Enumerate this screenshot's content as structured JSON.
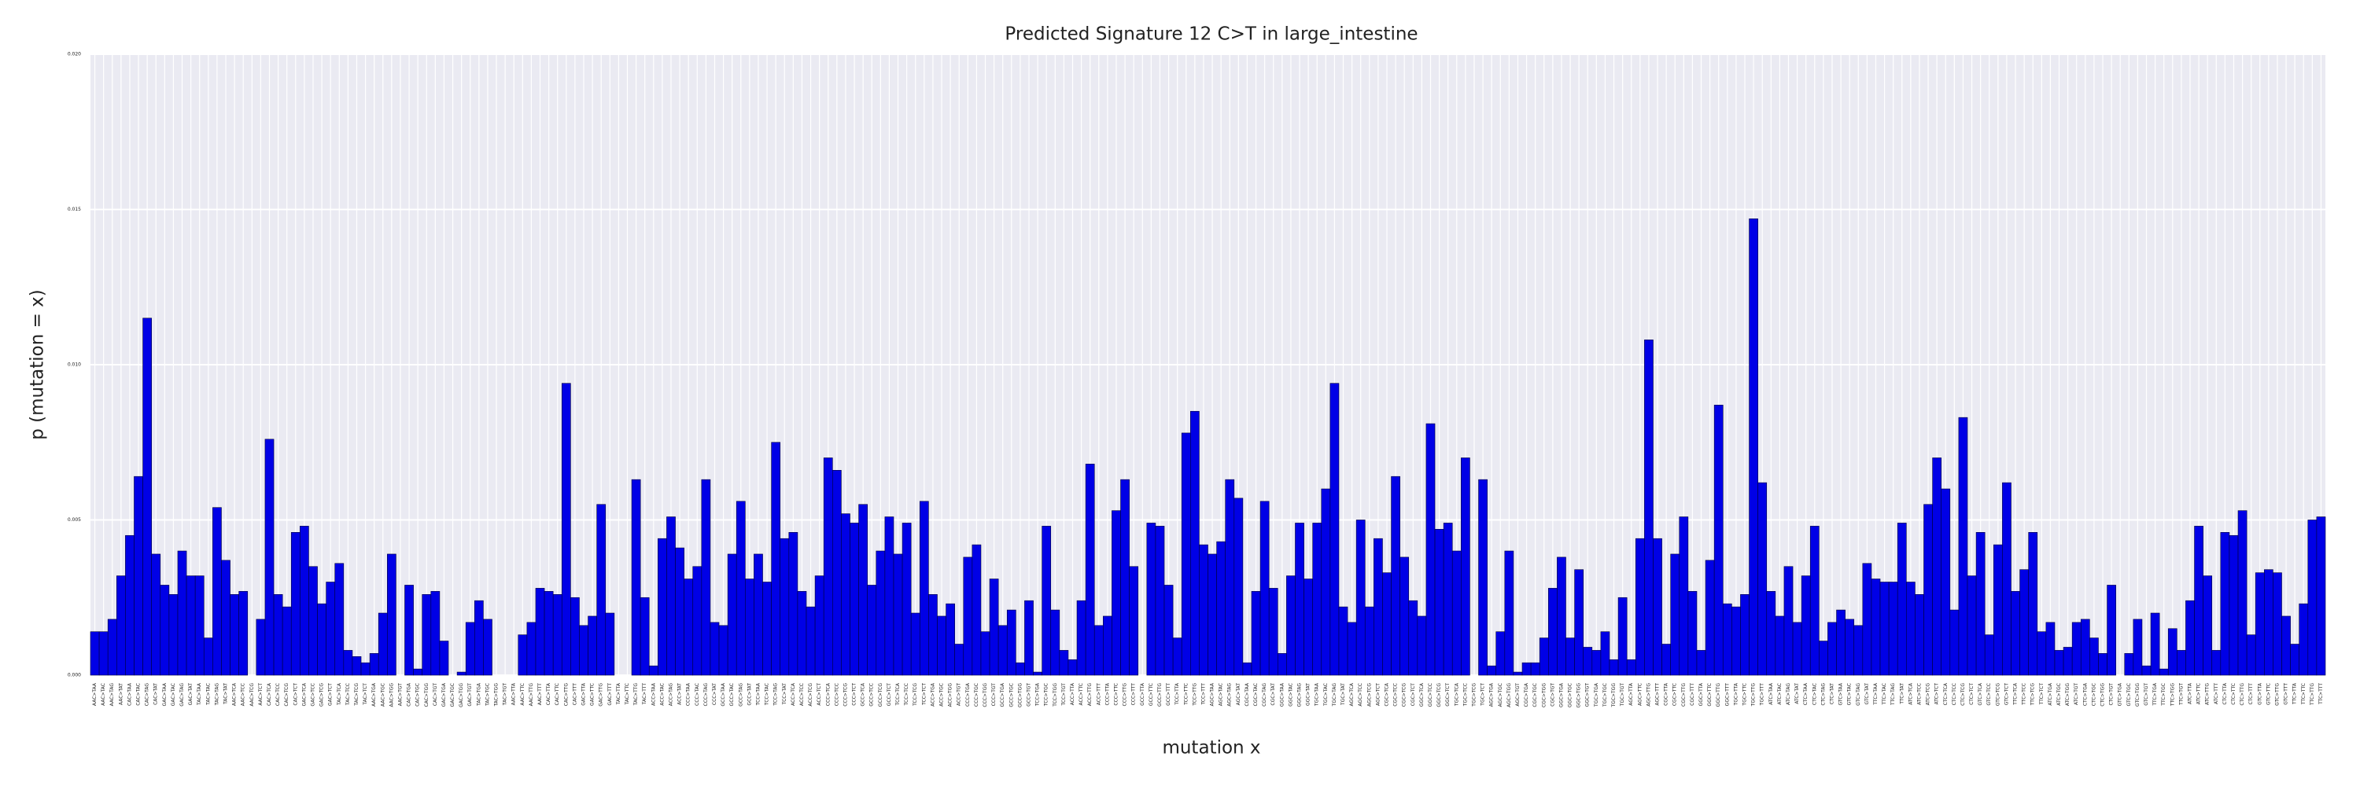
{
  "chart_data": {
    "type": "bar",
    "title": "Predicted Signature 12 C>T in large_intestine",
    "xlabel": "mutation x",
    "ylabel": "p (mutation = x)",
    "color": "#0000e6",
    "grid": true,
    "ylim": [
      0,
      0.02
    ],
    "yticks": [
      {
        "value": 0,
        "label": "0.000"
      },
      {
        "value": 0.005,
        "label": "0.005"
      },
      {
        "value": 0.01,
        "label": "0.010"
      },
      {
        "value": 0.015,
        "label": "0.015"
      },
      {
        "value": 0.02,
        "label": "0.020"
      }
    ],
    "categories": [
      "AAC>TAA",
      "AAC>TAC",
      "AAC>TAG",
      "AAC>TAT",
      "CAC>TAA",
      "CAC>TAC",
      "CAC>TAG",
      "CAC>TAT",
      "GAC>TAA",
      "GAC>TAC",
      "GAC>TAG",
      "GAC>TAT",
      "TAC>TAA",
      "TAC>TAC",
      "TAC>TAG",
      "TAC>TAT",
      "AAC>TCA",
      "AAC>TCC",
      "AAC>TCG",
      "AAC>TCT",
      "CAC>TCA",
      "CAC>TCC",
      "CAC>TCG",
      "CAC>TCT",
      "GAC>TCA",
      "GAC>TCC",
      "GAC>TCG",
      "GAC>TCT",
      "TAC>TCA",
      "TAC>TCC",
      "TAC>TCG",
      "TAC>TCT",
      "AAC>TGA",
      "AAC>TGC",
      "AAC>TGG",
      "AAC>TGT",
      "CAC>TGA",
      "CAC>TGC",
      "CAC>TGG",
      "CAC>TGT",
      "GAC>TGA",
      "GAC>TGC",
      "GAC>TGG",
      "GAC>TGT",
      "TAC>TGA",
      "TAC>TGC",
      "TAC>TGG",
      "TAC>TGT",
      "AAC>TTA",
      "AAC>TTC",
      "AAC>TTG",
      "AAC>TTT",
      "CAC>TTA",
      "CAC>TTC",
      "CAC>TTG",
      "CAC>TTT",
      "GAC>TTA",
      "GAC>TTC",
      "GAC>TTG",
      "GAC>TTT",
      "TAC>TTA",
      "TAC>TTC",
      "TAC>TTG",
      "TAC>TTT",
      "ACC>TAA",
      "ACC>TAC",
      "ACC>TAG",
      "ACC>TAT",
      "CCC>TAA",
      "CCC>TAC",
      "CCC>TAG",
      "CCC>TAT",
      "GCC>TAA",
      "GCC>TAC",
      "GCC>TAG",
      "GCC>TAT",
      "TCC>TAA",
      "TCC>TAC",
      "TCC>TAG",
      "TCC>TAT",
      "ACC>TCA",
      "ACC>TCC",
      "ACC>TCG",
      "ACC>TCT",
      "CCC>TCA",
      "CCC>TCC",
      "CCC>TCG",
      "CCC>TCT",
      "GCC>TCA",
      "GCC>TCC",
      "GCC>TCG",
      "GCC>TCT",
      "TCC>TCA",
      "TCC>TCC",
      "TCC>TCG",
      "TCC>TCT",
      "ACC>TGA",
      "ACC>TGC",
      "ACC>TGG",
      "ACC>TGT",
      "CCC>TGA",
      "CCC>TGC",
      "CCC>TGG",
      "CCC>TGT",
      "GCC>TGA",
      "GCC>TGC",
      "GCC>TGG",
      "GCC>TGT",
      "TCC>TGA",
      "TCC>TGC",
      "TCC>TGG",
      "TCC>TGT",
      "ACC>TTA",
      "ACC>TTC",
      "ACC>TTG",
      "ACC>TTT",
      "CCC>TTA",
      "CCC>TTC",
      "CCC>TTG",
      "CCC>TTT",
      "GCC>TTA",
      "GCC>TTC",
      "GCC>TTG",
      "GCC>TTT",
      "TCC>TTA",
      "TCC>TTC",
      "TCC>TTG",
      "TCC>TTT",
      "AGC>TAA",
      "AGC>TAC",
      "AGC>TAG",
      "AGC>TAT",
      "CGC>TAA",
      "CGC>TAC",
      "CGC>TAG",
      "CGC>TAT",
      "GGC>TAA",
      "GGC>TAC",
      "GGC>TAG",
      "GGC>TAT",
      "TGC>TAA",
      "TGC>TAC",
      "TGC>TAG",
      "TGC>TAT",
      "AGC>TCA",
      "AGC>TCC",
      "AGC>TCG",
      "AGC>TCT",
      "CGC>TCA",
      "CGC>TCC",
      "CGC>TCG",
      "CGC>TCT",
      "GGC>TCA",
      "GGC>TCC",
      "GGC>TCG",
      "GGC>TCT",
      "TGC>TCA",
      "TGC>TCC",
      "TGC>TCG",
      "TGC>TCT",
      "AGC>TGA",
      "AGC>TGC",
      "AGC>TGG",
      "AGC>TGT",
      "CGC>TGA",
      "CGC>TGC",
      "CGC>TGG",
      "CGC>TGT",
      "GGC>TGA",
      "GGC>TGC",
      "GGC>TGG",
      "GGC>TGT",
      "TGC>TGA",
      "TGC>TGC",
      "TGC>TGG",
      "TGC>TGT",
      "AGC>TTA",
      "AGC>TTC",
      "AGC>TTG",
      "AGC>TTT",
      "CGC>TTA",
      "CGC>TTC",
      "CGC>TTG",
      "CGC>TTT",
      "GGC>TTA",
      "GGC>TTC",
      "GGC>TTG",
      "GGC>TTT",
      "TGC>TTA",
      "TGC>TTC",
      "TGC>TTG",
      "TGC>TTT",
      "ATC>TAA",
      "ATC>TAC",
      "ATC>TAG",
      "ATC>TAT",
      "CTC>TAA",
      "CTC>TAC",
      "CTC>TAG",
      "CTC>TAT",
      "GTC>TAA",
      "GTC>TAC",
      "GTC>TAG",
      "GTC>TAT",
      "TTC>TAA",
      "TTC>TAC",
      "TTC>TAG",
      "TTC>TAT",
      "ATC>TCA",
      "ATC>TCC",
      "ATC>TCG",
      "ATC>TCT",
      "CTC>TCA",
      "CTC>TCC",
      "CTC>TCG",
      "CTC>TCT",
      "GTC>TCA",
      "GTC>TCC",
      "GTC>TCG",
      "GTC>TCT",
      "TTC>TCA",
      "TTC>TCC",
      "TTC>TCG",
      "TTC>TCT",
      "ATC>TGA",
      "ATC>TGC",
      "ATC>TGG",
      "ATC>TGT",
      "CTC>TGA",
      "CTC>TGC",
      "CTC>TGG",
      "CTC>TGT",
      "GTC>TGA",
      "GTC>TGC",
      "GTC>TGG",
      "GTC>TGT",
      "TTC>TGA",
      "TTC>TGC",
      "TTC>TGG",
      "TTC>TGT",
      "ATC>TTA",
      "ATC>TTC",
      "ATC>TTG",
      "ATC>TTT",
      "CTC>TTA",
      "CTC>TTC",
      "CTC>TTG",
      "CTC>TTT",
      "GTC>TTA",
      "GTC>TTC",
      "GTC>TTG",
      "GTC>TTT",
      "TTC>TTA",
      "TTC>TTC",
      "TTC>TTG",
      "TTC>TTT"
    ],
    "values": [
      0.0014,
      0.0014,
      0.0018,
      0.0032,
      0.0045,
      0.0064,
      0.0115,
      0.0039,
      0.0029,
      0.0026,
      0.004,
      0.0032,
      0.0032,
      0.0012,
      0.0054,
      0.0037,
      0.0026,
      0.0027,
      0,
      0.0018,
      0.0076,
      0.0026,
      0.0022,
      0.0046,
      0.0048,
      0.0035,
      0.0023,
      0.003,
      0.0036,
      0.0008,
      0.0006,
      0.0004,
      0.0007,
      0.002,
      0.0039,
      0,
      0.0029,
      0.0002,
      0.0026,
      0.0027,
      0.0011,
      0,
      0.0001,
      0.0017,
      0.0024,
      0.0018,
      0,
      0,
      0,
      0.0013,
      0.0017,
      0.0028,
      0.0027,
      0.0026,
      0.0094,
      0.0025,
      0.0016,
      0.0019,
      0.0055,
      0.002,
      0,
      0,
      0.0063,
      0.0025,
      0.0003,
      0.0044,
      0.0051,
      0.0041,
      0.0031,
      0.0035,
      0.0063,
      0.0017,
      0.0016,
      0.0039,
      0.0056,
      0.0031,
      0.0039,
      0.003,
      0.0075,
      0.0044,
      0.0046,
      0.0027,
      0.0022,
      0.0032,
      0.007,
      0.0066,
      0.0052,
      0.0049,
      0.0055,
      0.0029,
      0.004,
      0.0051,
      0.0039,
      0.0049,
      0.002,
      0.0056,
      0.0026,
      0.0019,
      0.0023,
      0.001,
      0.0038,
      0.0042,
      0.0014,
      0.0031,
      0.0016,
      0.0021,
      0.0004,
      0.0024,
      0.0001,
      0.0048,
      0.0021,
      0.0008,
      0.0005,
      0.0024,
      0.0068,
      0.0016,
      0.0019,
      0.0053,
      0.0063,
      0.0035,
      0,
      0.0049,
      0.0048,
      0.0029,
      0.0012,
      0.0078,
      0.0085,
      0.0042,
      0.0039,
      0.0043,
      0.0063,
      0.0057,
      0.0004,
      0.0027,
      0.0056,
      0.0028,
      0.0007,
      0.0032,
      0.0049,
      0.0031,
      0.0049,
      0.006,
      0.0094,
      0.0022,
      0.0017,
      0.005,
      0.0022,
      0.0044,
      0.0033,
      0.0064,
      0.0038,
      0.0024,
      0.0019,
      0.0081,
      0.0047,
      0.0049,
      0.004,
      0.007,
      0,
      0.0063,
      0.0003,
      0.0014,
      0.004,
      0.0001,
      0.0004,
      0.0004,
      0.0012,
      0.0028,
      0.0038,
      0.0012,
      0.0034,
      0.0009,
      0.0008,
      0.0014,
      0.0005,
      0.0025,
      0.0005,
      0.0044,
      0.0108,
      0.0044,
      0.001,
      0.0039,
      0.0051,
      0.0027,
      0.0008,
      0.0037,
      0.0087,
      0.0023,
      0.0022,
      0.0026,
      0.0147,
      0.0062,
      0.0027,
      0.0019,
      0.0035,
      0.0017,
      0.0032,
      0.0048,
      0.0011,
      0.0017,
      0.0021,
      0.0018,
      0.0016,
      0.0036,
      0.0031,
      0.003,
      0.003,
      0.0049,
      0.003,
      0.0026,
      0.0055,
      0.007,
      0.006,
      0.0021,
      0.0083,
      0.0032,
      0.0046,
      0.0013,
      0.0042,
      0.0062,
      0.0027,
      0.0034,
      0.0046,
      0.0014,
      0.0017,
      0.0008,
      0.0009,
      0.0017,
      0.0018,
      0.0012,
      0.0007,
      0.0029,
      0,
      0.0007,
      0.0018,
      0.0003,
      0.002,
      0.0002,
      0.0015,
      0.0008,
      0.0024,
      0.0048,
      0.0032,
      0.0008,
      0.0046,
      0.0045,
      0.0053,
      0.0013,
      0.0033,
      0.0034,
      0.0033,
      0.0019,
      0.001,
      0.0023,
      0.005,
      0.0051
    ]
  }
}
